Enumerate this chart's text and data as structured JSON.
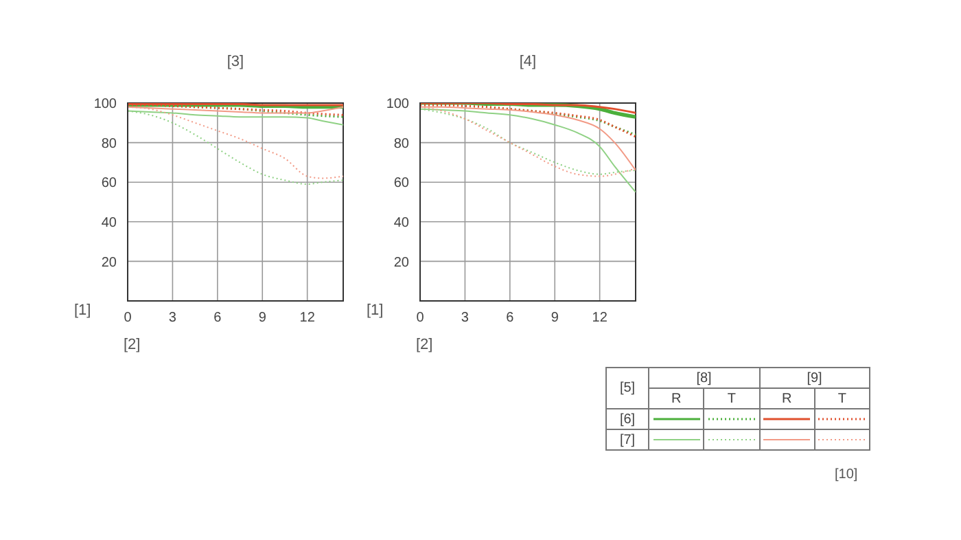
{
  "chart_data": [
    {
      "type": "line",
      "title": "[3]",
      "xlabel": "[2]",
      "ylabel": "[1]",
      "x": [
        0,
        1.5,
        3,
        4.5,
        6,
        7.5,
        9,
        10.5,
        12,
        13,
        14.4
      ],
      "xlim": [
        0,
        14.4
      ],
      "xticks": [
        0,
        3,
        6,
        9,
        12
      ],
      "ylim": [
        0,
        100
      ],
      "yticks": [
        20,
        40,
        60,
        80,
        100
      ],
      "grid": true,
      "series": [
        {
          "color": "#4caf3c",
          "line_style": "solid",
          "values": [
            99,
            99,
            99,
            99,
            99,
            99,
            98.5,
            98.5,
            98,
            98,
            98
          ]
        },
        {
          "color": "#4caf3c",
          "line_style": "dotted",
          "values": [
            99,
            99,
            98.5,
            98,
            97.5,
            97,
            96,
            95,
            94,
            93.5,
            93
          ]
        },
        {
          "color": "#e0502e",
          "line_style": "solid",
          "values": [
            99.5,
            99.5,
            99.5,
            99.5,
            99.5,
            99.5,
            99,
            99,
            99,
            99,
            99
          ]
        },
        {
          "color": "#e0502e",
          "line_style": "dotted",
          "values": [
            99,
            99,
            98.5,
            98,
            97.5,
            97,
            96.5,
            96,
            95,
            94.5,
            94
          ]
        },
        {
          "color": "#8fd184",
          "line_style": "solid",
          "values": [
            96,
            95.5,
            95,
            94,
            93.5,
            93,
            93,
            93,
            92.5,
            91,
            89
          ]
        },
        {
          "color": "#8fd184",
          "line_style": "dotted",
          "values": [
            96,
            94,
            90,
            84,
            77,
            70,
            64,
            61,
            59,
            60,
            61
          ]
        },
        {
          "color": "#f29a86",
          "line_style": "solid",
          "values": [
            98,
            97.5,
            97,
            96.5,
            96,
            95.5,
            95,
            95,
            95,
            96,
            98
          ]
        },
        {
          "color": "#f29a86",
          "line_style": "dotted",
          "values": [
            98,
            97,
            94,
            90,
            86,
            82,
            77,
            72,
            63,
            62,
            63
          ]
        }
      ]
    },
    {
      "type": "line",
      "title": "[4]",
      "xlabel": "[2]",
      "ylabel": "[1]",
      "x": [
        0,
        1.5,
        3,
        4.5,
        6,
        7.5,
        9,
        10.5,
        12,
        13,
        14.4
      ],
      "xlim": [
        0,
        14.4
      ],
      "xticks": [
        0,
        3,
        6,
        9,
        12
      ],
      "ylim": [
        0,
        100
      ],
      "yticks": [
        20,
        40,
        60,
        80,
        100
      ],
      "grid": true,
      "series": [
        {
          "color": "#4caf3c",
          "line_style": "solid",
          "values": [
            100,
            100,
            100,
            99.5,
            99.5,
            99,
            99,
            98.5,
            97,
            95,
            93
          ]
        },
        {
          "color": "#4caf3c",
          "line_style": "dotted",
          "values": [
            99,
            99,
            98.5,
            98,
            97,
            96,
            94.5,
            93,
            91,
            88,
            84
          ]
        },
        {
          "color": "#e0502e",
          "line_style": "solid",
          "values": [
            100,
            100,
            100,
            100,
            99.5,
            99.5,
            99,
            99,
            98,
            97,
            95
          ]
        },
        {
          "color": "#e0502e",
          "line_style": "dotted",
          "values": [
            99,
            99,
            98.5,
            98,
            97,
            96,
            95,
            93.5,
            91.5,
            88,
            83
          ]
        },
        {
          "color": "#8fd184",
          "line_style": "solid",
          "values": [
            97,
            96.5,
            96,
            95,
            94,
            92,
            89,
            85,
            78,
            68,
            55
          ]
        },
        {
          "color": "#8fd184",
          "line_style": "dotted",
          "values": [
            97,
            95,
            92,
            87,
            80,
            75,
            70,
            66,
            64,
            65,
            66
          ]
        },
        {
          "color": "#f29a86",
          "line_style": "solid",
          "values": [
            98,
            98,
            97.5,
            97,
            96.5,
            95.5,
            94,
            91.5,
            87,
            80,
            66
          ]
        },
        {
          "color": "#f29a86",
          "line_style": "dotted",
          "values": [
            98,
            96,
            92,
            86,
            80,
            74,
            68,
            64,
            63,
            64,
            67
          ]
        }
      ]
    },
    {
      "type": "other",
      "annotations": [
        "[5]",
        "[8]",
        "[9]",
        "R",
        "T",
        "R",
        "T",
        "[6]",
        "[7]",
        "[10]"
      ]
    }
  ]
}
